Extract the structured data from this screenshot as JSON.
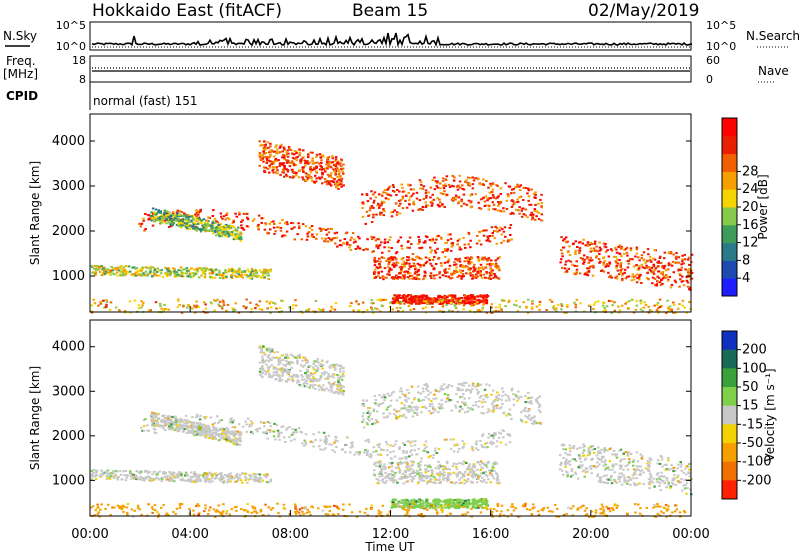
{
  "header": {
    "radar": "Hokkaido East (fitACF)",
    "beam": "Beam 15",
    "date": "02/May/2019"
  },
  "noise_panel": {
    "left_label": "N.Sky",
    "right_label": "N.Search",
    "left_ticks": [
      "10^5",
      "10^0"
    ],
    "right_ticks": [
      "10^5",
      "10^0"
    ]
  },
  "freq_panel": {
    "left_label_1": "Freq.",
    "left_label_2": "[MHz]",
    "right_label": "Nave",
    "left_ticks": [
      "18",
      "8"
    ],
    "right_ticks": [
      "60",
      "0"
    ]
  },
  "cpid_panel": {
    "label": "CPID",
    "text": "normal (fast) 151"
  },
  "colors": {
    "power_scale": [
      "#1d1dff",
      "#1d4ab0",
      "#2b7a8a",
      "#3d9c5a",
      "#88c84a",
      "#f5d400",
      "#f5a000",
      "#f06000",
      "#e82000",
      "#ff0000"
    ],
    "velocity_scale": [
      "#1030c0",
      "#1a6a5a",
      "#3aa03a",
      "#7ed04a",
      "#c8c8c8",
      "#f2d200",
      "#f5a000",
      "#f07000",
      "#ff2000"
    ]
  },
  "chart_data": [
    {
      "type": "heatmap",
      "title": "",
      "xlabel": "",
      "ylabel": "Slant Range [km]",
      "xlim": [
        "00:00",
        "00:00"
      ],
      "ylim": [
        200,
        4600
      ],
      "x_ticks": [
        "00:00",
        "04:00",
        "08:00",
        "12:00",
        "16:00",
        "20:00",
        "00:00"
      ],
      "y_ticks": [
        1000,
        2000,
        3000,
        4000
      ],
      "colorbar": {
        "label": "Power [dB]",
        "ticks": [
          4,
          8,
          12,
          16,
          20,
          24,
          28
        ]
      }
    },
    {
      "type": "heatmap",
      "title": "",
      "xlabel": "Time UT",
      "ylabel": "Slant Range [km]",
      "xlim": [
        "00:00",
        "00:00"
      ],
      "ylim": [
        200,
        4600
      ],
      "x_ticks": [
        "00:00",
        "04:00",
        "08:00",
        "12:00",
        "16:00",
        "20:00",
        "00:00"
      ],
      "y_ticks": [
        1000,
        2000,
        3000,
        4000
      ],
      "colorbar": {
        "label": "Velocity [m s⁻¹]",
        "ticks": [
          200,
          100,
          50,
          15,
          -15,
          -50,
          -100,
          -200
        ]
      }
    }
  ]
}
